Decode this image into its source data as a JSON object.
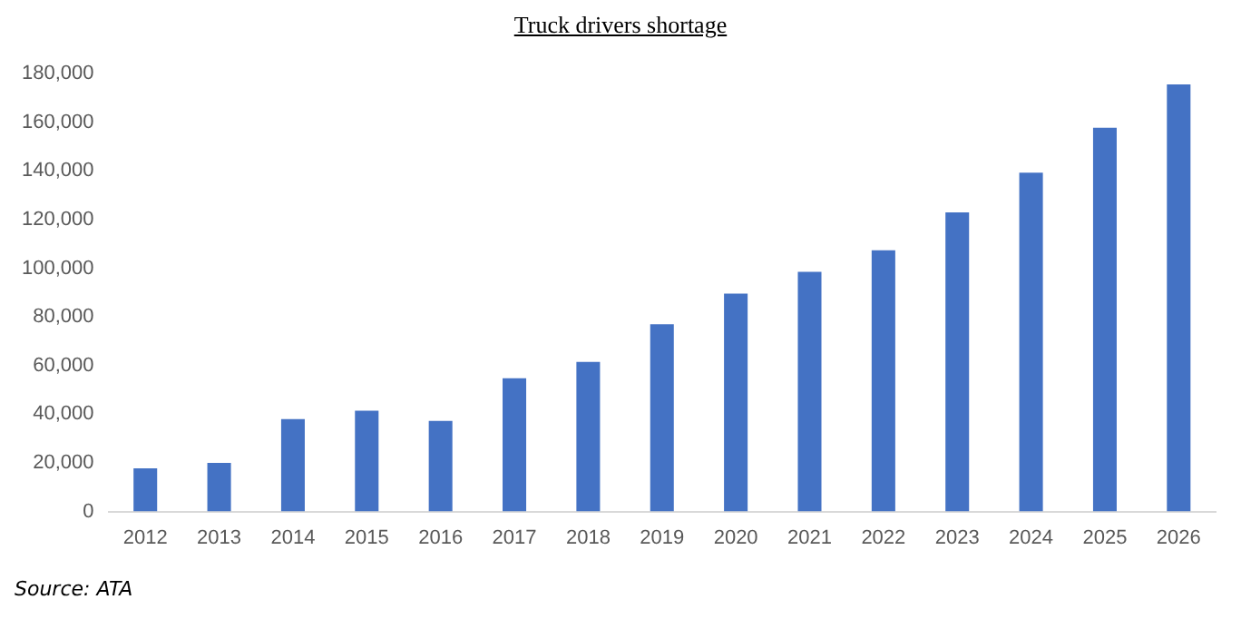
{
  "chart_data": {
    "type": "bar",
    "title": "Truck drivers shortage",
    "categories": [
      "2012",
      "2013",
      "2014",
      "2015",
      "2016",
      "2017",
      "2018",
      "2019",
      "2020",
      "2021",
      "2022",
      "2023",
      "2024",
      "2025",
      "2026"
    ],
    "values": [
      17800,
      20000,
      38000,
      41500,
      37300,
      54800,
      61500,
      77000,
      89600,
      98500,
      107400,
      123000,
      139300,
      157800,
      175600
    ],
    "color": "#4472c4",
    "ylim": [
      0,
      180000
    ],
    "yticks": [
      {
        "value": 0,
        "label": "0"
      },
      {
        "value": 20000,
        "label": "20,000"
      },
      {
        "value": 40000,
        "label": "40,000"
      },
      {
        "value": 60000,
        "label": "60,000"
      },
      {
        "value": 80000,
        "label": "80,000"
      },
      {
        "value": 100000,
        "label": "100,000"
      },
      {
        "value": 120000,
        "label": "120,000"
      },
      {
        "value": 140000,
        "label": "140,000"
      },
      {
        "value": 160000,
        "label": "160,000"
      },
      {
        "value": 180000,
        "label": "180,000"
      }
    ],
    "grid": false,
    "annotations": [
      "Source: ATA"
    ]
  }
}
